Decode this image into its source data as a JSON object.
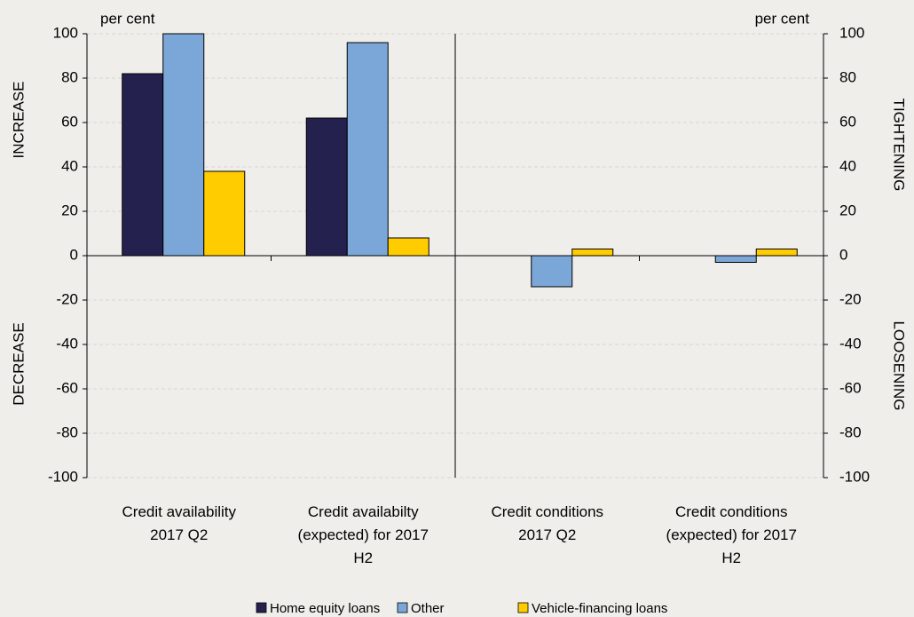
{
  "chart_data": {
    "type": "bar",
    "categories": [
      "Credit availability\n2017 Q2",
      "Credit availabilty\n(expected) for 2017\nH2",
      "Credit conditions\n2017 Q2",
      "Credit conditions\n(expected) for 2017\nH2"
    ],
    "series": [
      {
        "name": "Home equity loans",
        "color": "#24214f",
        "values": [
          82,
          62,
          0,
          0
        ]
      },
      {
        "name": "Other",
        "color": "#7ba7d8",
        "values": [
          100,
          96,
          -14,
          -3
        ]
      },
      {
        "name": "Vehicle-financing loans",
        "color": "#ffcc00",
        "values": [
          38,
          8,
          3,
          3
        ]
      }
    ],
    "ylim": [
      -100,
      100
    ],
    "yticks": [
      -100,
      -80,
      -60,
      -40,
      -20,
      0,
      20,
      40,
      60,
      80,
      100
    ],
    "y2lim": [
      -100,
      100
    ],
    "y2ticks": [
      -100,
      -80,
      -60,
      -40,
      -20,
      0,
      20,
      40,
      60,
      80,
      100
    ],
    "y_label": "per cent",
    "y2_label": "per cent",
    "annotations": [
      "INCREASE",
      "DECREASE",
      "TIGHTENING",
      "LOOSENING"
    ],
    "grid": true,
    "legend": "bottom"
  }
}
